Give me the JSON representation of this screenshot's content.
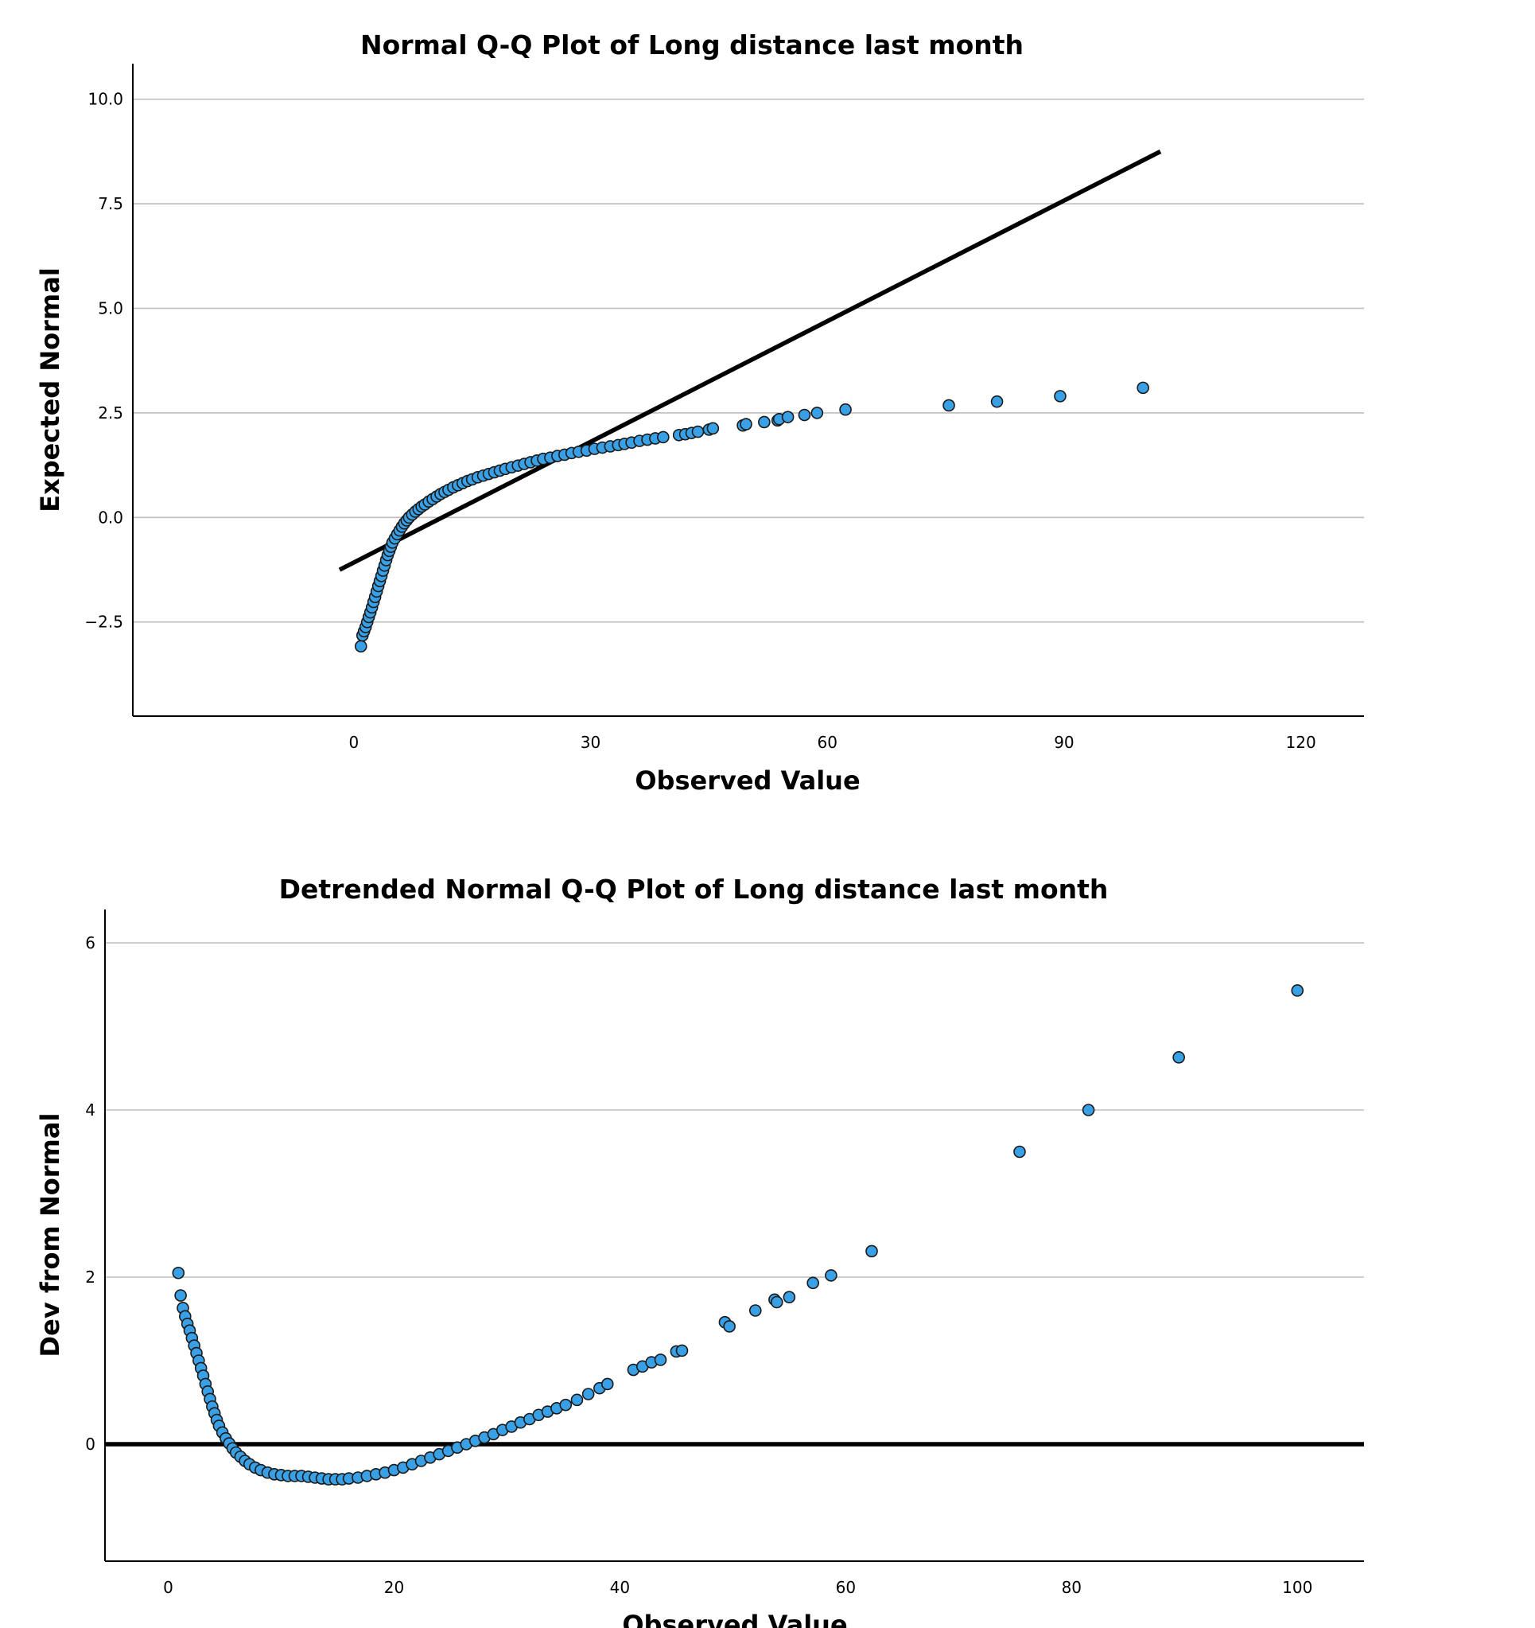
{
  "chart_data": [
    {
      "type": "scatter",
      "title": "Normal Q-Q Plot of Long distance last month",
      "xlabel": "Observed Value",
      "ylabel": "Expected Normal",
      "xticks": [
        "0",
        "30",
        "60",
        "90",
        "120"
      ],
      "yticks": [
        "10.0",
        "7.5",
        "5.0",
        "2.5",
        "0.0",
        "-2.5"
      ],
      "xlim": [
        -28,
        128
      ],
      "ylim": [
        -4.75,
        10.85
      ],
      "grid": true,
      "point_color": "#3aa0e6",
      "reference_line": {
        "x": [
          -1.8,
          102.2
        ],
        "y": [
          -1.25,
          8.75
        ]
      },
      "points": {
        "x": [
          0.9,
          1.1,
          1.3,
          1.5,
          1.7,
          1.9,
          2.1,
          2.3,
          2.5,
          2.7,
          2.9,
          3.1,
          3.3,
          3.5,
          3.7,
          3.9,
          4.1,
          4.3,
          4.5,
          4.7,
          4.9,
          5.2,
          5.5,
          5.8,
          6.1,
          6.4,
          6.7,
          7.0,
          7.4,
          7.8,
          8.2,
          8.6,
          9.0,
          9.5,
          10.0,
          10.5,
          11.0,
          11.5,
          12.0,
          12.6,
          13.2,
          13.8,
          14.4,
          15.0,
          15.7,
          16.4,
          17.1,
          17.8,
          18.5,
          19.2,
          20.0,
          20.8,
          21.6,
          22.4,
          23.2,
          24.0,
          24.9,
          25.8,
          26.7,
          27.6,
          28.5,
          29.5,
          30.5,
          31.5,
          32.5,
          33.5,
          34.3,
          35.2,
          36.2,
          37.2,
          38.2,
          39.2,
          41.2,
          42.0,
          42.8,
          43.6,
          45.0,
          45.5,
          49.3,
          49.7,
          52.0,
          53.7,
          53.9,
          55.0,
          57.1,
          58.7,
          62.3,
          75.4,
          81.5,
          89.5,
          100.0
        ],
        "y": [
          -3.08,
          -2.82,
          -2.72,
          -2.62,
          -2.5,
          -2.38,
          -2.27,
          -2.15,
          -2.02,
          -1.9,
          -1.77,
          -1.64,
          -1.52,
          -1.4,
          -1.27,
          -1.15,
          -1.02,
          -0.9,
          -0.8,
          -0.7,
          -0.6,
          -0.5,
          -0.4,
          -0.31,
          -0.22,
          -0.14,
          -0.07,
          0.0,
          0.07,
          0.14,
          0.2,
          0.26,
          0.31,
          0.38,
          0.44,
          0.5,
          0.56,
          0.61,
          0.66,
          0.72,
          0.77,
          0.82,
          0.87,
          0.91,
          0.96,
          1.0,
          1.04,
          1.08,
          1.12,
          1.16,
          1.2,
          1.24,
          1.28,
          1.32,
          1.36,
          1.4,
          1.43,
          1.47,
          1.5,
          1.54,
          1.57,
          1.6,
          1.64,
          1.67,
          1.7,
          1.73,
          1.76,
          1.79,
          1.83,
          1.86,
          1.89,
          1.92,
          1.97,
          1.99,
          2.02,
          2.05,
          2.1,
          2.13,
          2.2,
          2.23,
          2.28,
          2.32,
          2.35,
          2.4,
          2.45,
          2.5,
          2.58,
          2.68,
          2.77,
          2.9,
          3.1
        ]
      }
    },
    {
      "type": "scatter",
      "title": "Detrended Normal Q-Q Plot of Long distance last month",
      "xlabel": "Observed Value",
      "ylabel": "Dev from Normal",
      "xticks": [
        "0",
        "20",
        "40",
        "60",
        "80",
        "100"
      ],
      "yticks": [
        "6",
        "4",
        "2",
        "0"
      ],
      "xlim": [
        -5.6,
        105.9
      ],
      "ylim": [
        -1.4,
        6.4
      ],
      "grid": true,
      "point_color": "#3aa0e6",
      "reference_line": {
        "y": 0
      },
      "points": {
        "x": [
          0.9,
          1.1,
          1.3,
          1.5,
          1.7,
          1.9,
          2.1,
          2.3,
          2.5,
          2.7,
          2.9,
          3.1,
          3.3,
          3.5,
          3.7,
          3.9,
          4.1,
          4.3,
          4.5,
          4.8,
          5.1,
          5.4,
          5.7,
          6.0,
          6.4,
          6.8,
          7.2,
          7.7,
          8.2,
          8.8,
          9.4,
          10.0,
          10.6,
          11.2,
          11.8,
          12.4,
          13.0,
          13.6,
          14.2,
          14.8,
          15.4,
          16.0,
          16.8,
          17.6,
          18.4,
          19.2,
          20.0,
          20.8,
          21.6,
          22.4,
          23.2,
          24.0,
          24.8,
          25.6,
          26.4,
          27.2,
          28.0,
          28.8,
          29.6,
          30.4,
          31.2,
          32.0,
          32.8,
          33.6,
          34.4,
          35.2,
          36.2,
          37.2,
          38.2,
          38.9,
          41.2,
          42.0,
          42.8,
          43.6,
          45.0,
          45.5,
          49.3,
          49.7,
          52.0,
          53.7,
          53.9,
          55.0,
          57.1,
          58.7,
          62.3,
          75.4,
          81.5,
          89.5,
          100.0
        ],
        "y": [
          2.05,
          1.78,
          1.63,
          1.53,
          1.44,
          1.36,
          1.27,
          1.18,
          1.09,
          1.0,
          0.91,
          0.82,
          0.72,
          0.63,
          0.54,
          0.45,
          0.37,
          0.29,
          0.22,
          0.14,
          0.07,
          0.01,
          -0.05,
          -0.1,
          -0.15,
          -0.2,
          -0.24,
          -0.28,
          -0.31,
          -0.34,
          -0.36,
          -0.37,
          -0.38,
          -0.38,
          -0.38,
          -0.39,
          -0.4,
          -0.41,
          -0.42,
          -0.42,
          -0.42,
          -0.41,
          -0.4,
          -0.38,
          -0.36,
          -0.34,
          -0.31,
          -0.28,
          -0.24,
          -0.2,
          -0.16,
          -0.12,
          -0.08,
          -0.04,
          0.0,
          0.04,
          0.08,
          0.12,
          0.17,
          0.21,
          0.26,
          0.3,
          0.35,
          0.39,
          0.43,
          0.47,
          0.53,
          0.6,
          0.67,
          0.72,
          0.89,
          0.93,
          0.98,
          1.01,
          1.11,
          1.12,
          1.46,
          1.41,
          1.6,
          1.73,
          1.7,
          1.76,
          1.93,
          2.02,
          2.31,
          3.5,
          4.0,
          4.63,
          5.43
        ]
      }
    }
  ]
}
